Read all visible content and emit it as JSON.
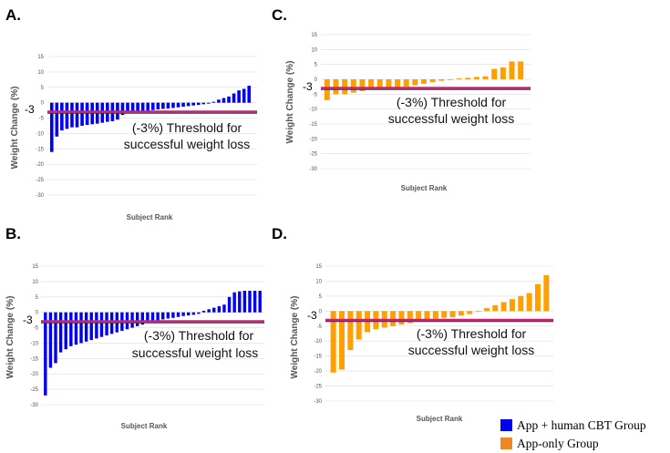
{
  "legend": {
    "entries": [
      {
        "label": "App + human CBT Group",
        "color": "#0000ee"
      },
      {
        "label": "App-only Group",
        "color": "#ee8822"
      }
    ]
  },
  "colors": {
    "blue": "#0000ee",
    "orange": "#ffa000",
    "threshold": "#d81b7a",
    "grid": "#dcdcdc"
  },
  "chart_data": [
    {
      "panel": "A.",
      "type": "bar",
      "ylabel": "Weight Change (%)",
      "xlabel": "Subject Rank",
      "ylim": [
        -30,
        15
      ],
      "yticks": [
        "15",
        "10",
        "5",
        "0",
        "-5",
        "-10",
        "-15",
        "-20",
        "-25",
        "-30"
      ],
      "grid": true,
      "threshold": {
        "value": -3,
        "marker": "-3",
        "label_line1": "(-3%) Threshold for",
        "label_line2": "successful weight loss"
      },
      "series": [
        {
          "color": "blue",
          "values": [
            -16,
            -11,
            -9,
            -8.5,
            -8,
            -8,
            -7.5,
            -7.2,
            -7,
            -6.8,
            -6.5,
            -6.2,
            -6,
            -5.5,
            -4,
            -3.5,
            -3.2,
            -3,
            -2.8,
            -2.6,
            -2.4,
            -2.2,
            -2,
            -1.9,
            -1.7,
            -1.5,
            -1.3,
            -1.1,
            -0.9,
            -0.7,
            -0.5,
            -0.3,
            0.3,
            1,
            1.5,
            2,
            3,
            4,
            4.5,
            5.5
          ]
        }
      ]
    },
    {
      "panel": "B.",
      "type": "bar",
      "ylabel": "Weight Change (%)",
      "xlabel": "Subject Rank",
      "ylim": [
        -30,
        15
      ],
      "yticks": [
        "15",
        "10",
        "5",
        "0",
        "-5",
        "-10",
        "-15",
        "-20",
        "-25",
        "-30"
      ],
      "grid": true,
      "threshold": {
        "value": -3,
        "marker": "-3",
        "label_line1": "(-3%) Threshold for",
        "label_line2": "successful weight loss"
      },
      "series": [
        {
          "color": "blue",
          "values": [
            -27,
            -18,
            -16.5,
            -13,
            -12,
            -11,
            -10.5,
            -10,
            -9.5,
            -9,
            -8.5,
            -8,
            -7.5,
            -7,
            -6.5,
            -6,
            -5.5,
            -5,
            -4.5,
            -4,
            -3.5,
            -3,
            -2.6,
            -2.3,
            -2,
            -1.8,
            -1.5,
            -1.2,
            -1,
            -0.8,
            -0.5,
            0.5,
            1,
            1.5,
            2,
            2.5,
            5,
            6.5,
            6.8,
            7,
            7,
            7,
            7
          ]
        }
      ]
    },
    {
      "panel": "C.",
      "type": "bar",
      "ylabel": "Weight Change (%)",
      "xlabel": "Subject Rank",
      "ylim": [
        -30,
        15
      ],
      "yticks": [
        "15",
        "10",
        "5",
        "0",
        "-5",
        "-10",
        "-15",
        "-20",
        "-25",
        "-30"
      ],
      "grid": true,
      "threshold": {
        "value": -3,
        "marker": "-3",
        "label_line1": "(-3%) Threshold for",
        "label_line2": "successful weight loss"
      },
      "series": [
        {
          "color": "orange",
          "values": [
            -7,
            -5,
            -5,
            -4.5,
            -4,
            -3.5,
            -3.2,
            -3,
            -2.8,
            -2.5,
            -2,
            -1.5,
            -1,
            -0.5,
            -0.2,
            0.3,
            0.5,
            0.8,
            1,
            3.5,
            4,
            6,
            6
          ]
        }
      ]
    },
    {
      "panel": "D.",
      "type": "bar",
      "ylabel": "Weight Change (%)",
      "xlabel": "Subject Rank",
      "ylim": [
        -30,
        15
      ],
      "yticks": [
        "15",
        "10",
        "5",
        "0",
        "-5",
        "-10",
        "-15",
        "-20",
        "-25",
        "-30"
      ],
      "grid": true,
      "threshold": {
        "value": -3,
        "marker": "-3",
        "label_line1": "(-3%) Threshold for",
        "label_line2": "successful weight loss"
      },
      "series": [
        {
          "color": "orange",
          "values": [
            -20.5,
            -19.5,
            -13,
            -9.5,
            -7,
            -6,
            -5.5,
            -5,
            -4.5,
            -4,
            -3.5,
            -3,
            -2.5,
            -2.2,
            -2,
            -1.5,
            -1,
            0,
            1,
            2,
            3,
            4,
            5,
            6,
            9,
            12
          ]
        }
      ]
    }
  ]
}
